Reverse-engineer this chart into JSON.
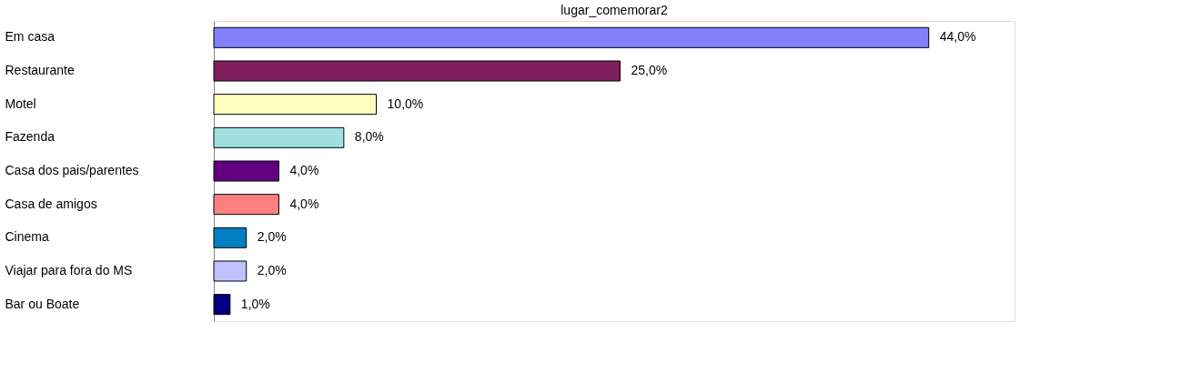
{
  "chart_data": {
    "type": "bar",
    "orientation": "horizontal",
    "title": "lugar_comemorar2",
    "categories": [
      "Em casa",
      "Restaurante",
      "Motel",
      "Fazenda",
      "Casa dos pais/parentes",
      "Casa de amigos",
      "Cinema",
      "Viajar para fora do MS",
      "Bar ou Boate"
    ],
    "values": [
      44,
      25,
      10,
      8,
      4,
      4,
      2,
      2,
      1
    ],
    "colors": [
      "#8080ff",
      "#801f5e",
      "#ffffc0",
      "#a0e0e0",
      "#600080",
      "#ff8080",
      "#0080c0",
      "#c0c0ff",
      "#000080"
    ],
    "value_labels": [
      "44,0%",
      "25,0%",
      "10,0%",
      "8,0%",
      "4,0%",
      "4,0%",
      "2,0%",
      "2,0%",
      "1,0%"
    ],
    "grid": false
  }
}
